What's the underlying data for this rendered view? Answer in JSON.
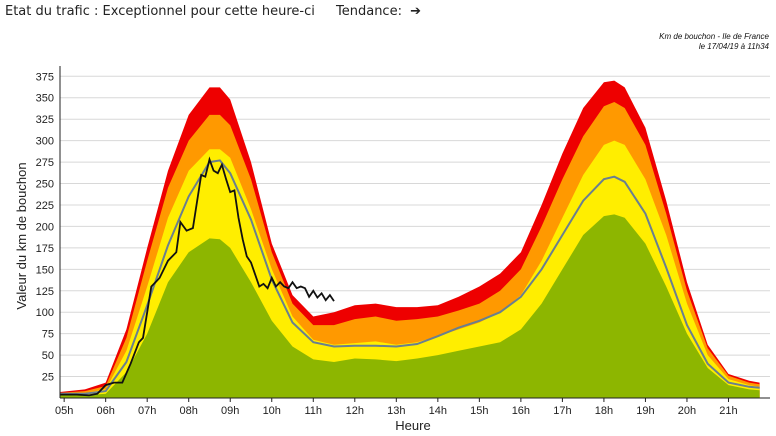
{
  "header": {
    "traffic_label": "Etat du trafic :",
    "traffic_status": "Exceptionnel pour cette heure-ci",
    "tendance_label": "Tendance:",
    "tendance_icon": "arrow-right-icon"
  },
  "chart_data": {
    "type": "area",
    "title": "Km de bouchon - Ile de France",
    "subtitle": "le 17/04/19 à 11h34",
    "xlabel": "Heure",
    "ylabel": "Valeur du km de bouchon",
    "x_ticks": [
      "05h",
      "06h",
      "07h",
      "08h",
      "09h",
      "10h",
      "11h",
      "12h",
      "13h",
      "14h",
      "15h",
      "16h",
      "17h",
      "18h",
      "19h",
      "20h",
      "21h"
    ],
    "y_ticks": [
      25,
      50,
      75,
      100,
      125,
      150,
      175,
      200,
      225,
      250,
      275,
      300,
      325,
      350,
      375
    ],
    "ylim": [
      0,
      387
    ],
    "xlim": [
      4.9,
      22.0
    ],
    "grid": "horizontal",
    "colors": {
      "green": "#8db600",
      "yellow": "#ffee00",
      "orange": "#ff9900",
      "red": "#ee0000",
      "average": "#6a7f8f",
      "today": "#111111"
    },
    "x": [
      4.9,
      5.5,
      6.0,
      6.5,
      7.0,
      7.5,
      8.0,
      8.5,
      8.75,
      9.0,
      9.5,
      10.0,
      10.5,
      11.0,
      11.5,
      12.0,
      12.5,
      13.0,
      13.5,
      14.0,
      14.5,
      15.0,
      15.5,
      16.0,
      16.5,
      17.0,
      17.5,
      18.0,
      18.25,
      18.5,
      19.0,
      19.5,
      20.0,
      20.5,
      21.0,
      21.5,
      21.75
    ],
    "series": [
      {
        "name": "green",
        "values": [
          3,
          3,
          5,
          30,
          75,
          135,
          170,
          186,
          185,
          175,
          135,
          90,
          60,
          45,
          42,
          46,
          45,
          43,
          46,
          50,
          55,
          60,
          65,
          80,
          110,
          150,
          190,
          212,
          214,
          210,
          180,
          130,
          75,
          35,
          15,
          10,
          9
        ]
      },
      {
        "name": "yellow",
        "values": [
          5,
          6,
          10,
          55,
          130,
          210,
          265,
          290,
          290,
          280,
          220,
          150,
          95,
          68,
          62,
          64,
          66,
          62,
          65,
          72,
          80,
          88,
          100,
          120,
          160,
          210,
          260,
          295,
          300,
          295,
          255,
          190,
          110,
          50,
          22,
          15,
          13
        ]
      },
      {
        "name": "orange",
        "values": [
          6,
          8,
          14,
          70,
          160,
          245,
          300,
          330,
          330,
          318,
          255,
          170,
          110,
          85,
          85,
          92,
          95,
          90,
          92,
          95,
          102,
          110,
          125,
          150,
          200,
          255,
          305,
          340,
          345,
          338,
          295,
          215,
          125,
          58,
          26,
          18,
          16
        ]
      },
      {
        "name": "red",
        "values": [
          7,
          10,
          18,
          80,
          175,
          265,
          330,
          362,
          362,
          348,
          275,
          180,
          120,
          95,
          100,
          108,
          110,
          106,
          106,
          108,
          118,
          130,
          145,
          170,
          225,
          285,
          338,
          368,
          370,
          362,
          315,
          230,
          135,
          62,
          28,
          20,
          18
        ]
      },
      {
        "name": "average",
        "values": [
          5,
          5,
          8,
          42,
          108,
          178,
          235,
          275,
          277,
          262,
          208,
          138,
          88,
          65,
          60,
          61,
          61,
          60,
          63,
          72,
          82,
          90,
          100,
          118,
          150,
          190,
          230,
          255,
          258,
          252,
          215,
          152,
          85,
          40,
          18,
          13,
          12
        ]
      }
    ],
    "today": {
      "x": [
        4.9,
        5.3,
        5.6,
        5.8,
        6.0,
        6.2,
        6.4,
        6.6,
        6.8,
        6.9,
        7.0,
        7.1,
        7.2,
        7.3,
        7.5,
        7.7,
        7.8,
        7.95,
        8.1,
        8.3,
        8.4,
        8.5,
        8.6,
        8.7,
        8.8,
        8.9,
        9.0,
        9.1,
        9.2,
        9.3,
        9.4,
        9.5,
        9.7,
        9.8,
        9.9,
        10.0,
        10.1,
        10.2,
        10.3,
        10.4,
        10.5,
        10.6,
        10.7,
        10.8,
        10.9,
        11.0,
        11.1,
        11.2,
        11.3,
        11.4,
        11.5
      ],
      "values": [
        4,
        4,
        3,
        5,
        15,
        18,
        18,
        40,
        65,
        70,
        100,
        130,
        135,
        140,
        160,
        170,
        205,
        195,
        198,
        260,
        258,
        278,
        265,
        262,
        272,
        255,
        240,
        242,
        210,
        185,
        165,
        158,
        130,
        133,
        128,
        140,
        130,
        135,
        130,
        128,
        135,
        128,
        130,
        128,
        118,
        125,
        117,
        122,
        114,
        120,
        113
      ]
    }
  }
}
